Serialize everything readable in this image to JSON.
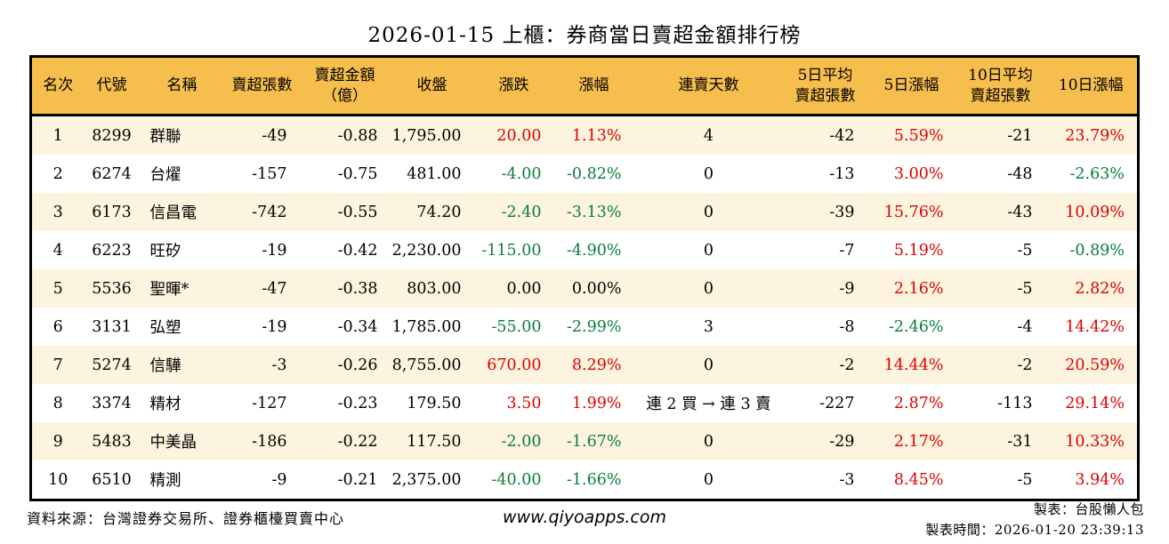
{
  "title": "2026-01-15 上櫃：券商當日賣超金額排行榜",
  "chart_data": {
    "type": "table",
    "title": "2026-01-15 上櫃：券商當日賣超金額排行榜",
    "columns": [
      "名次",
      "代號",
      "名稱",
      "賣超張數",
      "賣超金額\n（億）",
      "收盤",
      "漲跌",
      "漲幅",
      "連賣天數",
      "5日平均\n賣超張數",
      "5日漲幅",
      "10日平均\n賣超張數",
      "10日漲幅"
    ],
    "column_keys": [
      "rank",
      "code",
      "name",
      "net-sell-volume",
      "net-sell-amount",
      "close",
      "change",
      "change-pct",
      "consecutive-sell-days",
      "avg5-net-sell-volume",
      "pct-5day",
      "avg10-net-sell-volume",
      "pct-10day"
    ],
    "aligns": [
      "center",
      "center",
      "left",
      "right",
      "right",
      "right",
      "right",
      "right",
      "center",
      "right",
      "right",
      "right",
      "right"
    ],
    "rows": [
      {
        "cells": [
          "1",
          "8299",
          "群聯",
          "-49",
          "-0.88",
          "1,795.00",
          {
            "v": "20.00",
            "c": "up"
          },
          {
            "v": "1.13%",
            "c": "up"
          },
          "4",
          "-42",
          {
            "v": "5.59%",
            "c": "up"
          },
          "-21",
          {
            "v": "23.79%",
            "c": "up"
          }
        ]
      },
      {
        "cells": [
          "2",
          "6274",
          "台燿",
          "-157",
          "-0.75",
          "481.00",
          {
            "v": "-4.00",
            "c": "down"
          },
          {
            "v": "-0.82%",
            "c": "down"
          },
          "0",
          "-13",
          {
            "v": "3.00%",
            "c": "up"
          },
          "-48",
          {
            "v": "-2.63%",
            "c": "down"
          }
        ]
      },
      {
        "cells": [
          "3",
          "6173",
          "信昌電",
          "-742",
          "-0.55",
          "74.20",
          {
            "v": "-2.40",
            "c": "down"
          },
          {
            "v": "-3.13%",
            "c": "down"
          },
          "0",
          "-39",
          {
            "v": "15.76%",
            "c": "up"
          },
          "-43",
          {
            "v": "10.09%",
            "c": "up"
          }
        ]
      },
      {
        "cells": [
          "4",
          "6223",
          "旺矽",
          "-19",
          "-0.42",
          "2,230.00",
          {
            "v": "-115.00",
            "c": "down"
          },
          {
            "v": "-4.90%",
            "c": "down"
          },
          "0",
          "-7",
          {
            "v": "5.19%",
            "c": "up"
          },
          "-5",
          {
            "v": "-0.89%",
            "c": "down"
          }
        ]
      },
      {
        "cells": [
          "5",
          "5536",
          "聖暉*",
          "-47",
          "-0.38",
          "803.00",
          {
            "v": "0.00",
            "c": "flat"
          },
          {
            "v": "0.00%",
            "c": "flat"
          },
          "0",
          "-9",
          {
            "v": "2.16%",
            "c": "up"
          },
          "-5",
          {
            "v": "2.82%",
            "c": "up"
          }
        ]
      },
      {
        "cells": [
          "6",
          "3131",
          "弘塑",
          "-19",
          "-0.34",
          "1,785.00",
          {
            "v": "-55.00",
            "c": "down"
          },
          {
            "v": "-2.99%",
            "c": "down"
          },
          "3",
          "-8",
          {
            "v": "-2.46%",
            "c": "down"
          },
          "-4",
          {
            "v": "14.42%",
            "c": "up"
          }
        ]
      },
      {
        "cells": [
          "7",
          "5274",
          "信驊",
          "-3",
          "-0.26",
          "8,755.00",
          {
            "v": "670.00",
            "c": "up"
          },
          {
            "v": "8.29%",
            "c": "up"
          },
          "0",
          "-2",
          {
            "v": "14.44%",
            "c": "up"
          },
          "-2",
          {
            "v": "20.59%",
            "c": "up"
          }
        ]
      },
      {
        "cells": [
          "8",
          "3374",
          "精材",
          "-127",
          "-0.23",
          "179.50",
          {
            "v": "3.50",
            "c": "up"
          },
          {
            "v": "1.99%",
            "c": "up"
          },
          "連 2 買 → 連 3 賣",
          "-227",
          {
            "v": "2.87%",
            "c": "up"
          },
          "-113",
          {
            "v": "29.14%",
            "c": "up"
          }
        ]
      },
      {
        "cells": [
          "9",
          "5483",
          "中美晶",
          "-186",
          "-0.22",
          "117.50",
          {
            "v": "-2.00",
            "c": "down"
          },
          {
            "v": "-1.67%",
            "c": "down"
          },
          "0",
          "-29",
          {
            "v": "2.17%",
            "c": "up"
          },
          "-31",
          {
            "v": "10.33%",
            "c": "up"
          }
        ]
      },
      {
        "cells": [
          "10",
          "6510",
          "精測",
          "-9",
          "-0.21",
          "2,375.00",
          {
            "v": "-40.00",
            "c": "down"
          },
          {
            "v": "-1.66%",
            "c": "down"
          },
          "0",
          "-3",
          {
            "v": "8.45%",
            "c": "up"
          },
          "-5",
          {
            "v": "3.94%",
            "c": "up"
          }
        ]
      }
    ]
  },
  "footer": {
    "source": "資料來源：台灣證券交易所、證券櫃檯買賣中心",
    "website": "www.qiyoapps.com",
    "maker": "製表：台股懶人包",
    "made_at": "製表時間：2026-01-20 23:39:13"
  },
  "colors": {
    "up_red": "#dd0000",
    "down_green": "#0a7d3a",
    "flat_black": "#000000",
    "header_bg": "#f6be4d",
    "row_alt_bg": "#fcf4de",
    "border": "#000000"
  }
}
